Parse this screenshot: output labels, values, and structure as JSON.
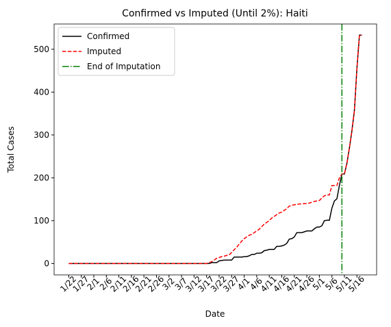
{
  "chart_data": {
    "type": "line",
    "title": "Confirmed vs Imputed (Until 2%): Haiti",
    "xlabel": "Date",
    "ylabel": "Total Cases",
    "categories": [
      "1/22",
      null,
      null,
      null,
      null,
      "1/27",
      null,
      null,
      null,
      null,
      "2/1",
      null,
      null,
      null,
      null,
      "2/6",
      null,
      null,
      null,
      null,
      "2/11",
      null,
      null,
      null,
      null,
      "2/16",
      null,
      null,
      null,
      null,
      "2/21",
      null,
      null,
      null,
      null,
      "2/26",
      null,
      null,
      null,
      null,
      "3/2",
      null,
      null,
      null,
      null,
      "3/7",
      null,
      null,
      null,
      null,
      "3/12",
      null,
      null,
      null,
      null,
      "3/17",
      null,
      null,
      null,
      null,
      "3/22",
      null,
      null,
      null,
      null,
      "3/27",
      null,
      null,
      null,
      null,
      "4/1",
      null,
      null,
      null,
      null,
      "4/6",
      null,
      null,
      null,
      null,
      "4/11",
      null,
      null,
      null,
      null,
      "4/16",
      null,
      null,
      null,
      null,
      "4/21",
      null,
      null,
      null,
      null,
      "4/26",
      null,
      null,
      null,
      null,
      "5/1",
      null,
      null,
      null,
      null,
      "5/6",
      null,
      null,
      null,
      null,
      "5/11",
      null,
      null,
      null,
      null,
      "5/16",
      null,
      null
    ],
    "series": [
      {
        "name": "Confirmed",
        "color": "#000000",
        "linestyle": "solid",
        "values": [
          0,
          0,
          0,
          0,
          0,
          0,
          0,
          0,
          0,
          0,
          0,
          0,
          0,
          0,
          0,
          0,
          0,
          0,
          0,
          0,
          0,
          0,
          0,
          0,
          0,
          0,
          0,
          0,
          0,
          0,
          0,
          0,
          0,
          0,
          0,
          0,
          0,
          0,
          0,
          0,
          0,
          0,
          0,
          0,
          0,
          0,
          0,
          0,
          0,
          0,
          0,
          0,
          0,
          0,
          0,
          0,
          0,
          2,
          2,
          2,
          6,
          7,
          8,
          8,
          8,
          8,
          15,
          15,
          15,
          15,
          16,
          16,
          18,
          21,
          21,
          24,
          24,
          25,
          30,
          31,
          33,
          33,
          33,
          40,
          40,
          41,
          43,
          47,
          57,
          58,
          62,
          72,
          72,
          72,
          74,
          76,
          76,
          76,
          81,
          85,
          85,
          88,
          100,
          101,
          101,
          129,
          146,
          151,
          182,
          209,
          209,
          234,
          270,
          310,
          358,
          456,
          533,
          533
        ]
      },
      {
        "name": "Imputed",
        "color": "#ff0000",
        "linestyle": "dashed",
        "values": [
          0,
          0,
          0,
          0,
          0,
          0,
          0,
          0,
          0,
          0,
          0,
          0,
          0,
          0,
          0,
          0,
          0,
          0,
          0,
          0,
          0,
          0,
          0,
          0,
          0,
          0,
          0,
          0,
          0,
          0,
          0,
          0,
          0,
          0,
          0,
          0,
          0,
          0,
          0,
          0,
          0,
          0,
          0,
          0,
          0,
          0,
          0,
          0,
          0,
          0,
          0,
          0,
          0,
          0,
          0,
          0,
          2,
          4,
          8,
          12,
          14,
          16,
          17,
          19,
          20,
          26,
          32,
          38,
          45,
          52,
          58,
          62,
          66,
          68,
          72,
          76,
          80,
          86,
          92,
          96,
          100,
          106,
          110,
          114,
          118,
          120,
          124,
          128,
          134,
          136,
          137,
          138,
          139,
          139,
          140,
          140,
          141,
          143,
          145,
          146,
          147,
          153,
          158,
          160,
          160,
          182,
          182,
          182,
          200,
          209,
          209,
          234,
          270,
          310,
          358,
          456,
          533,
          533
        ]
      }
    ],
    "vertical_line": {
      "name": "End of Imputation",
      "color": "#008000",
      "linestyle": "dashdot",
      "at": 109
    },
    "ylim": [
      -26.6,
      559
    ],
    "yticks": [
      0,
      100,
      200,
      300,
      400,
      500
    ],
    "legend": "upper left"
  }
}
